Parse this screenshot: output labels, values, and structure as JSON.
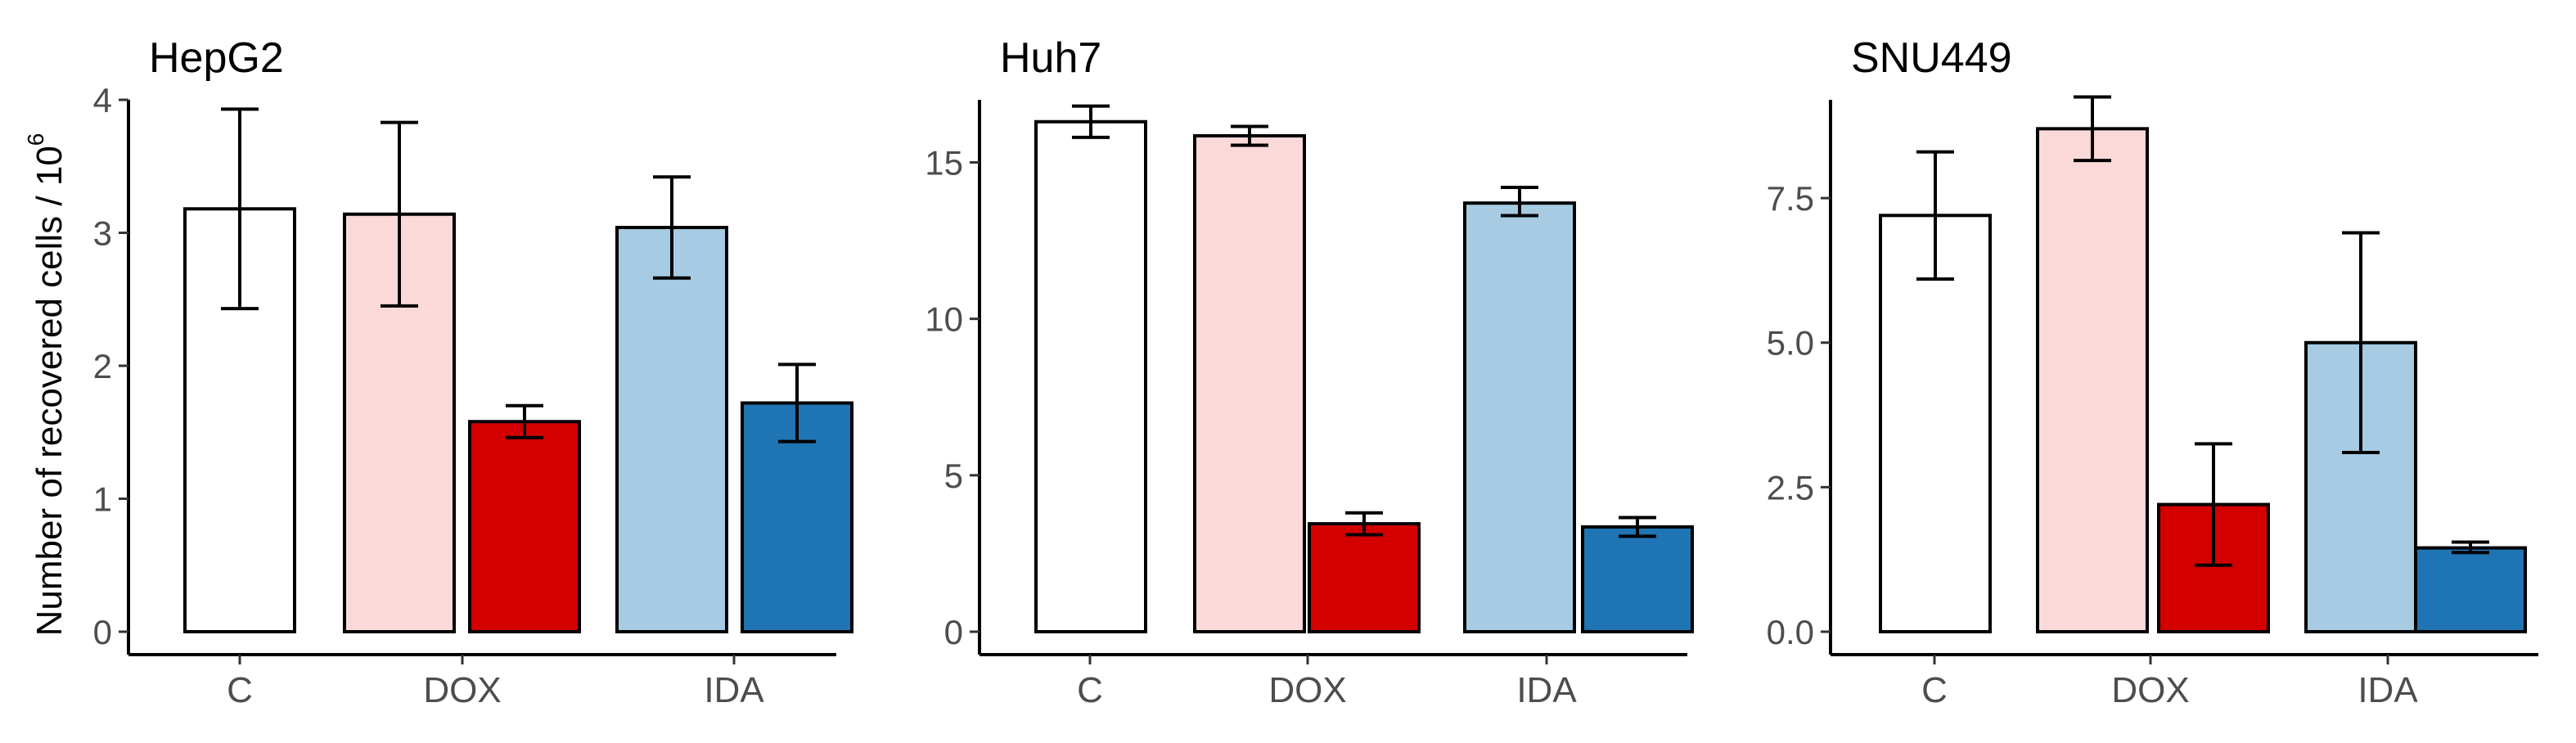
{
  "ylabel": "Number of recovered cells / 10",
  "ylabel_superscript": "6",
  "colors": {
    "C": "#ffffff",
    "DOX_light": "#fcd9d9",
    "DOX_dark": "#d40000",
    "IDA_light": "#a6cbe3",
    "IDA_dark": "#1f74b3",
    "stroke": "#000000",
    "tick_text": "#4d4d4d"
  },
  "chart_data": [
    {
      "type": "bar",
      "title": "HepG2",
      "ylim": [
        0,
        4
      ],
      "yticks": [
        0,
        1,
        2,
        3,
        4
      ],
      "categories": [
        "C",
        "DOX",
        "IDA"
      ],
      "bars": [
        {
          "group": "C",
          "fill": "C",
          "value": 3.18,
          "err_low": 2.43,
          "err_high": 3.93
        },
        {
          "group": "DOX",
          "fill": "DOX_light",
          "value": 3.14,
          "err_low": 2.45,
          "err_high": 3.83
        },
        {
          "group": "DOX",
          "fill": "DOX_dark",
          "value": 1.58,
          "err_low": 1.46,
          "err_high": 1.7
        },
        {
          "group": "IDA",
          "fill": "IDA_light",
          "value": 3.04,
          "err_low": 2.66,
          "err_high": 3.42
        },
        {
          "group": "IDA",
          "fill": "IDA_dark",
          "value": 1.72,
          "err_low": 1.43,
          "err_high": 2.01
        }
      ]
    },
    {
      "type": "bar",
      "title": "Huh7",
      "ylim": [
        0,
        17
      ],
      "yticks": [
        0,
        5,
        10,
        15
      ],
      "categories": [
        "C",
        "DOX",
        "IDA"
      ],
      "bars": [
        {
          "group": "C",
          "fill": "C",
          "value": 16.3,
          "err_low": 15.8,
          "err_high": 16.8
        },
        {
          "group": "DOX",
          "fill": "DOX_light",
          "value": 15.85,
          "err_low": 15.55,
          "err_high": 16.15
        },
        {
          "group": "DOX",
          "fill": "DOX_dark",
          "value": 3.45,
          "err_low": 3.1,
          "err_high": 3.8
        },
        {
          "group": "IDA",
          "fill": "IDA_light",
          "value": 13.7,
          "err_low": 13.3,
          "err_high": 14.2
        },
        {
          "group": "IDA",
          "fill": "IDA_dark",
          "value": 3.35,
          "err_low": 3.05,
          "err_high": 3.65
        }
      ]
    },
    {
      "type": "bar",
      "title": "SNU449",
      "ylim": [
        0,
        9.2
      ],
      "yticks": [
        0,
        2.5,
        5,
        7.5
      ],
      "ytick_labels": [
        "0.0",
        "2.5",
        "5.0",
        "7.5"
      ],
      "categories": [
        "C",
        "DOX",
        "IDA"
      ],
      "bars": [
        {
          "group": "C",
          "fill": "C",
          "value": 7.2,
          "err_low": 6.1,
          "err_high": 8.3
        },
        {
          "group": "DOX",
          "fill": "DOX_light",
          "value": 8.7,
          "err_low": 8.15,
          "err_high": 9.25
        },
        {
          "group": "DOX",
          "fill": "DOX_dark",
          "value": 2.2,
          "err_low": 1.15,
          "err_high": 3.25
        },
        {
          "group": "IDA",
          "fill": "IDA_light",
          "value": 5.0,
          "err_low": 3.1,
          "err_high": 6.9
        },
        {
          "group": "IDA",
          "fill": "IDA_dark",
          "value": 1.45,
          "err_low": 1.37,
          "err_high": 1.55
        }
      ]
    }
  ]
}
